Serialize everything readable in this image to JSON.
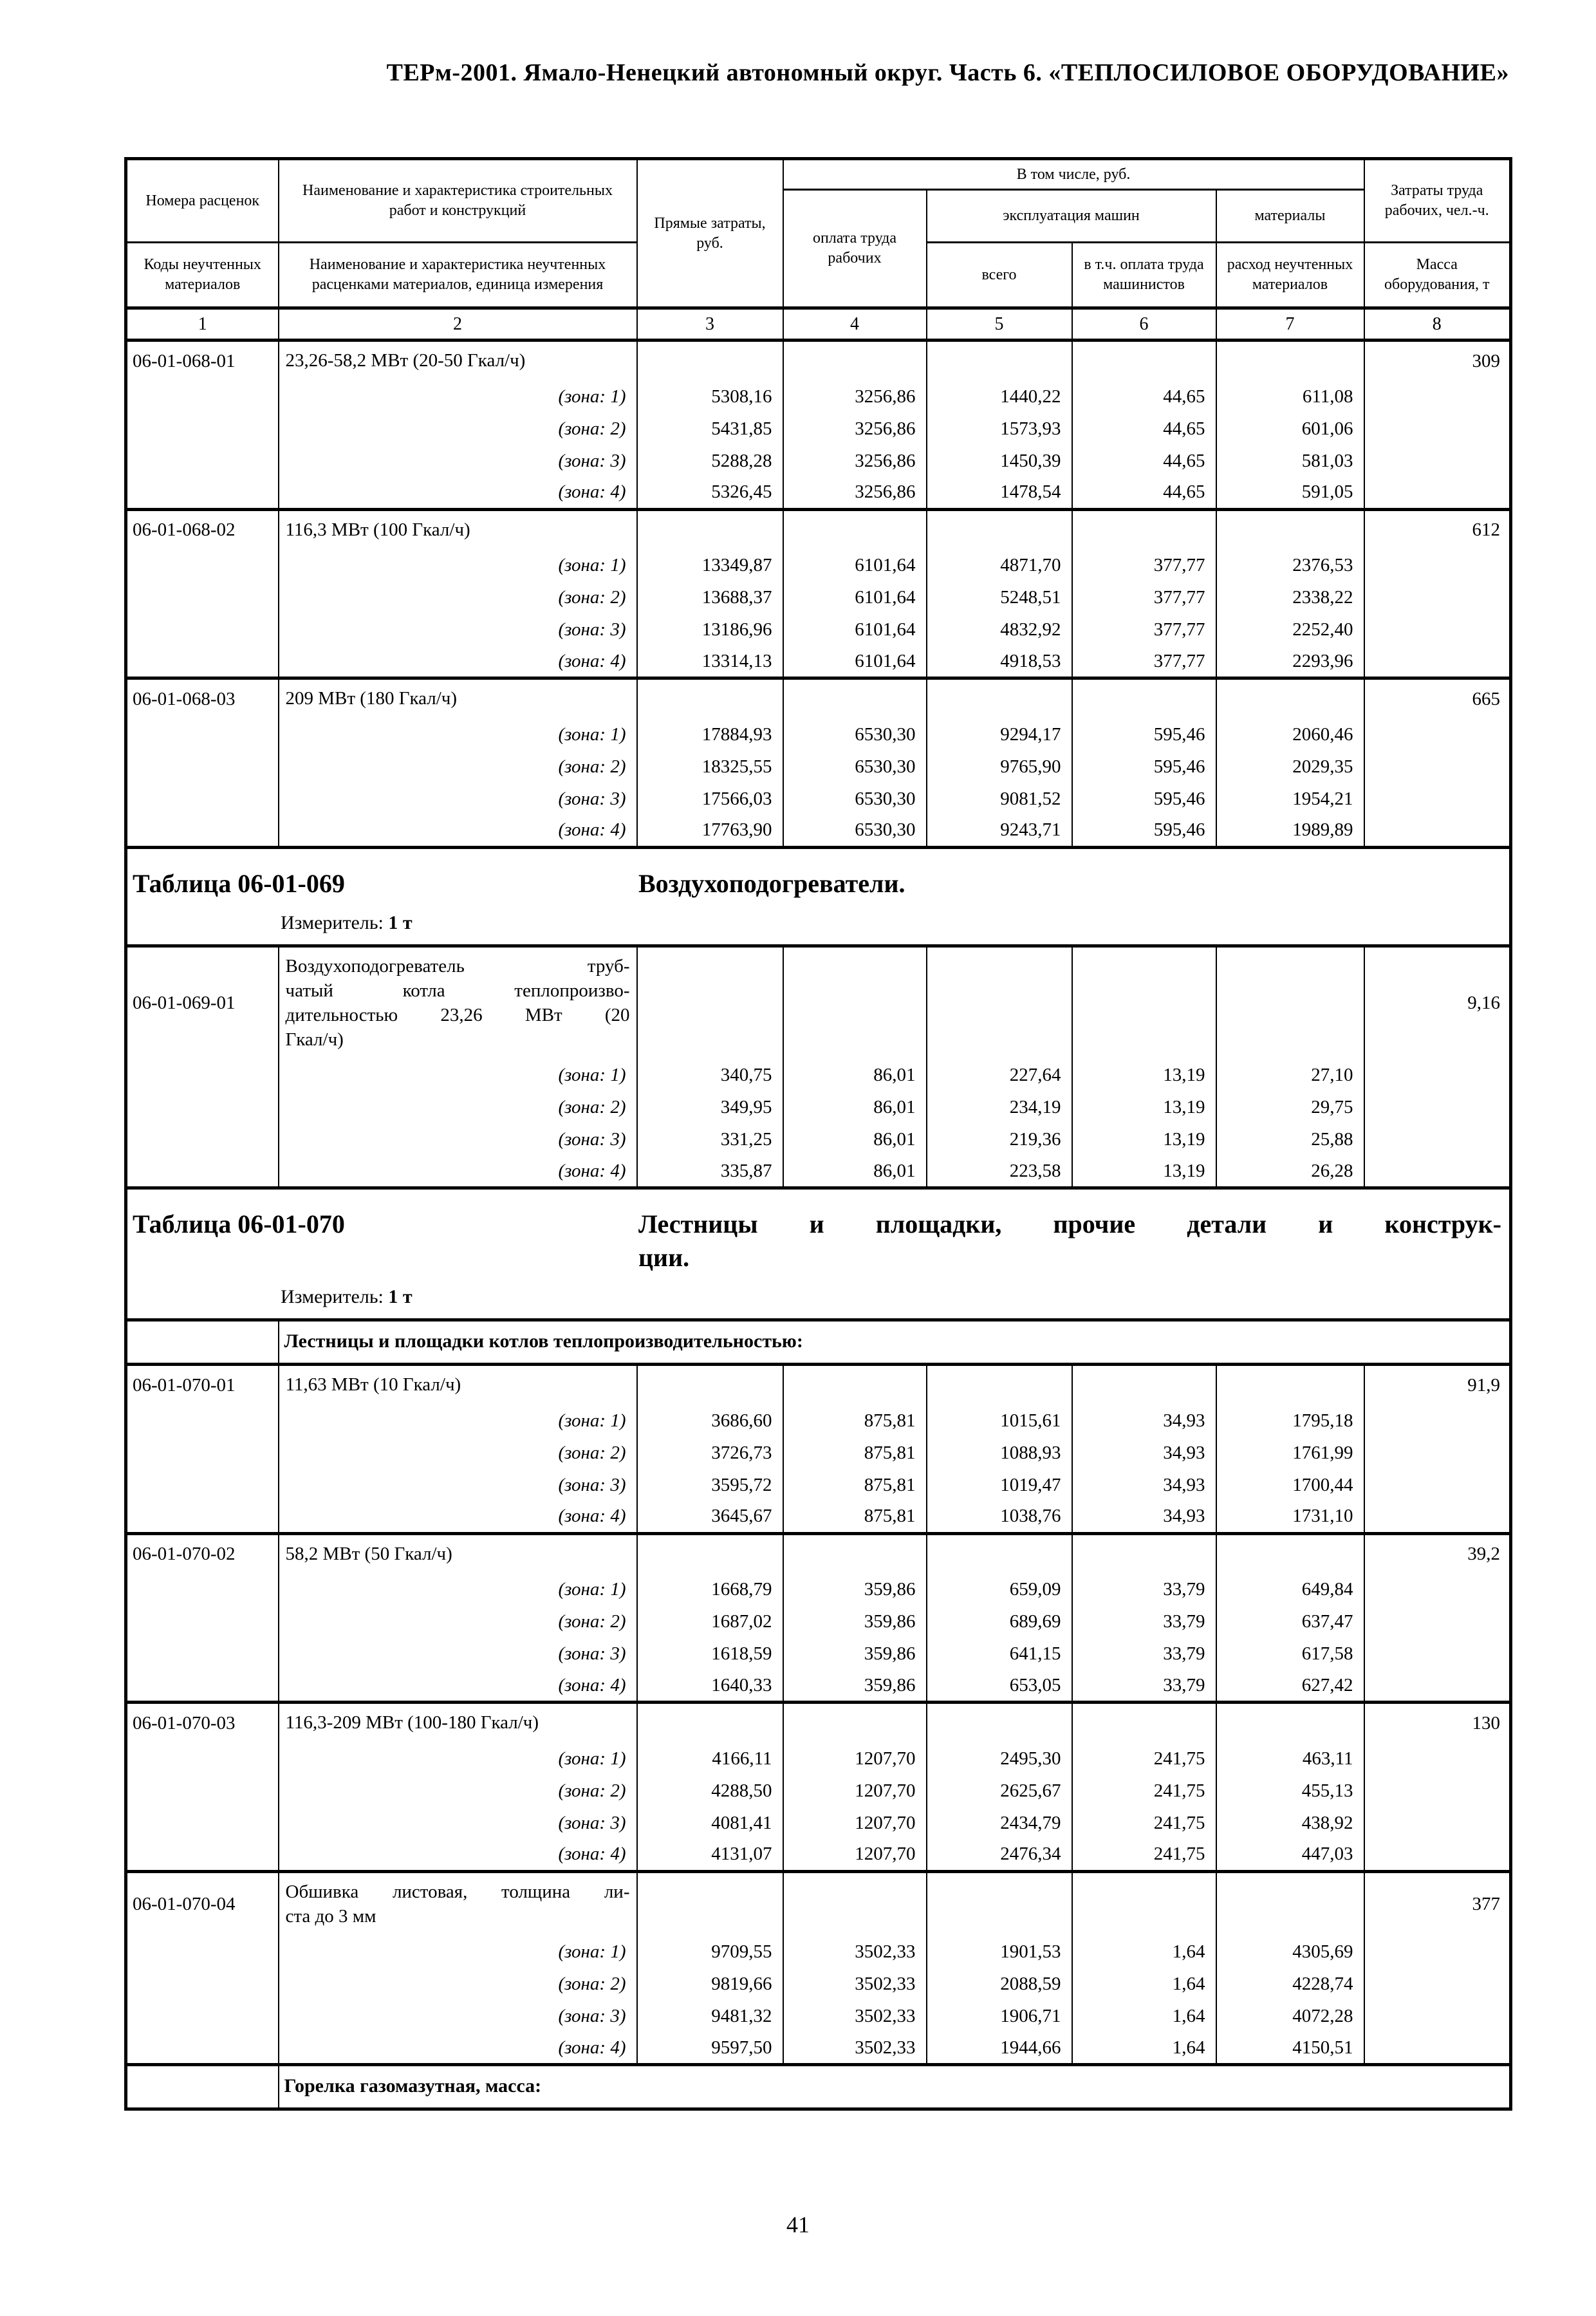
{
  "page": {
    "header": "ТЕРм-2001. Ямало-Ненецкий автономный округ. Часть 6. «ТЕПЛОСИЛОВОЕ ОБОРУДОВАНИЕ»",
    "page_number": "41"
  },
  "table": {
    "header": {
      "col1_top": "Номера расценок",
      "col1_bottom": "Коды неучтенных материалов",
      "col2_top": "Наименование и характеристика строительных работ и конструкций",
      "col2_bottom": "Наименование и характеристика неучтенных расценками материалов, единица измерения",
      "col3": "Прямые затраты, руб.",
      "group": "В том числе, руб.",
      "col4": "оплата труда рабочих",
      "machines": "эксплуатация машин",
      "materials": "материалы",
      "col5": "всего",
      "col6": "в т.ч. оплата труда машинистов",
      "col7": "расход неучтенных материалов",
      "col8_top": "Затраты труда рабочих, чел.-ч.",
      "col8_bottom": "Масса оборудования, т"
    },
    "column_numbers": [
      "1",
      "2",
      "3",
      "4",
      "5",
      "6",
      "7",
      "8"
    ],
    "blocks": [
      {
        "type": "rate",
        "code": "06-01-068-01",
        "description": "23,26-58,2 МВт (20-50 Гкал/ч)",
        "mass": "309",
        "zones": [
          {
            "label": "(зона: 1)",
            "values": [
              "5308,16",
              "3256,86",
              "1440,22",
              "44,65",
              "611,08"
            ]
          },
          {
            "label": "(зона: 2)",
            "values": [
              "5431,85",
              "3256,86",
              "1573,93",
              "44,65",
              "601,06"
            ]
          },
          {
            "label": "(зона: 3)",
            "values": [
              "5288,28",
              "3256,86",
              "1450,39",
              "44,65",
              "581,03"
            ]
          },
          {
            "label": "(зона: 4)",
            "values": [
              "5326,45",
              "3256,86",
              "1478,54",
              "44,65",
              "591,05"
            ]
          }
        ]
      },
      {
        "type": "rate",
        "code": "06-01-068-02",
        "description": "116,3 МВт (100 Гкал/ч)",
        "mass": "612",
        "zones": [
          {
            "label": "(зона: 1)",
            "values": [
              "13349,87",
              "6101,64",
              "4871,70",
              "377,77",
              "2376,53"
            ]
          },
          {
            "label": "(зона: 2)",
            "values": [
              "13688,37",
              "6101,64",
              "5248,51",
              "377,77",
              "2338,22"
            ]
          },
          {
            "label": "(зона: 3)",
            "values": [
              "13186,96",
              "6101,64",
              "4832,92",
              "377,77",
              "2252,40"
            ]
          },
          {
            "label": "(зона: 4)",
            "values": [
              "13314,13",
              "6101,64",
              "4918,53",
              "377,77",
              "2293,96"
            ]
          }
        ]
      },
      {
        "type": "rate",
        "code": "06-01-068-03",
        "description": "209 МВт (180 Гкал/ч)",
        "mass": "665",
        "zones": [
          {
            "label": "(зона: 1)",
            "values": [
              "17884,93",
              "6530,30",
              "9294,17",
              "595,46",
              "2060,46"
            ]
          },
          {
            "label": "(зона: 2)",
            "values": [
              "18325,55",
              "6530,30",
              "9765,90",
              "595,46",
              "2029,35"
            ]
          },
          {
            "label": "(зона: 3)",
            "values": [
              "17566,03",
              "6530,30",
              "9081,52",
              "595,46",
              "1954,21"
            ]
          },
          {
            "label": "(зона: 4)",
            "values": [
              "17763,90",
              "6530,30",
              "9243,71",
              "595,46",
              "1989,89"
            ]
          }
        ]
      },
      {
        "type": "heading",
        "number": "Таблица 06-01-069",
        "title": "Воздухоподогреватели.",
        "measure_label": "Измеритель:",
        "measure_value": "1 т"
      },
      {
        "type": "rate",
        "code": "06-01-069-01",
        "description": "Воздухоподогреватель труб-\nчатый котла теплопроизво-\nдительностью 23,26 МВт (20\nГкал/ч)",
        "mass": "9,16",
        "zones": [
          {
            "label": "(зона: 1)",
            "values": [
              "340,75",
              "86,01",
              "227,64",
              "13,19",
              "27,10"
            ]
          },
          {
            "label": "(зона: 2)",
            "values": [
              "349,95",
              "86,01",
              "234,19",
              "13,19",
              "29,75"
            ]
          },
          {
            "label": "(зона: 3)",
            "values": [
              "331,25",
              "86,01",
              "219,36",
              "13,19",
              "25,88"
            ]
          },
          {
            "label": "(зона: 4)",
            "values": [
              "335,87",
              "86,01",
              "223,58",
              "13,19",
              "26,28"
            ]
          }
        ]
      },
      {
        "type": "heading",
        "number": "Таблица 06-01-070",
        "title": "Лестницы и площадки, прочие детали и конструк-\nции.",
        "measure_label": "Измеритель:",
        "measure_value": "1 т"
      },
      {
        "type": "section",
        "text": "Лестницы и площадки котлов теплопроизводительностью:"
      },
      {
        "type": "rate",
        "code": "06-01-070-01",
        "description": "11,63 МВт (10 Гкал/ч)",
        "mass": "91,9",
        "zones": [
          {
            "label": "(зона: 1)",
            "values": [
              "3686,60",
              "875,81",
              "1015,61",
              "34,93",
              "1795,18"
            ]
          },
          {
            "label": "(зона: 2)",
            "values": [
              "3726,73",
              "875,81",
              "1088,93",
              "34,93",
              "1761,99"
            ]
          },
          {
            "label": "(зона: 3)",
            "values": [
              "3595,72",
              "875,81",
              "1019,47",
              "34,93",
              "1700,44"
            ]
          },
          {
            "label": "(зона: 4)",
            "values": [
              "3645,67",
              "875,81",
              "1038,76",
              "34,93",
              "1731,10"
            ]
          }
        ]
      },
      {
        "type": "rate",
        "code": "06-01-070-02",
        "description": "58,2 МВт (50 Гкал/ч)",
        "mass": "39,2",
        "zones": [
          {
            "label": "(зона: 1)",
            "values": [
              "1668,79",
              "359,86",
              "659,09",
              "33,79",
              "649,84"
            ]
          },
          {
            "label": "(зона: 2)",
            "values": [
              "1687,02",
              "359,86",
              "689,69",
              "33,79",
              "637,47"
            ]
          },
          {
            "label": "(зона: 3)",
            "values": [
              "1618,59",
              "359,86",
              "641,15",
              "33,79",
              "617,58"
            ]
          },
          {
            "label": "(зона: 4)",
            "values": [
              "1640,33",
              "359,86",
              "653,05",
              "33,79",
              "627,42"
            ]
          }
        ]
      },
      {
        "type": "rate",
        "code": "06-01-070-03",
        "description": "116,3-209 МВт (100-180 Гкал/ч)",
        "mass": "130",
        "zones": [
          {
            "label": "(зона: 1)",
            "values": [
              "4166,11",
              "1207,70",
              "2495,30",
              "241,75",
              "463,11"
            ]
          },
          {
            "label": "(зона: 2)",
            "values": [
              "4288,50",
              "1207,70",
              "2625,67",
              "241,75",
              "455,13"
            ]
          },
          {
            "label": "(зона: 3)",
            "values": [
              "4081,41",
              "1207,70",
              "2434,79",
              "241,75",
              "438,92"
            ]
          },
          {
            "label": "(зона: 4)",
            "values": [
              "4131,07",
              "1207,70",
              "2476,34",
              "241,75",
              "447,03"
            ]
          }
        ]
      },
      {
        "type": "rate",
        "code": "06-01-070-04",
        "description": "Обшивка листовая, толщина ли-\nста до 3 мм",
        "mass": "377",
        "zones": [
          {
            "label": "(зона: 1)",
            "values": [
              "9709,55",
              "3502,33",
              "1901,53",
              "1,64",
              "4305,69"
            ]
          },
          {
            "label": "(зона: 2)",
            "values": [
              "9819,66",
              "3502,33",
              "2088,59",
              "1,64",
              "4228,74"
            ]
          },
          {
            "label": "(зона: 3)",
            "values": [
              "9481,32",
              "3502,33",
              "1906,71",
              "1,64",
              "4072,28"
            ]
          },
          {
            "label": "(зона: 4)",
            "values": [
              "9597,50",
              "3502,33",
              "1944,66",
              "1,64",
              "4150,51"
            ]
          }
        ]
      },
      {
        "type": "section",
        "text": "Горелка газомазутная, масса:"
      }
    ]
  }
}
